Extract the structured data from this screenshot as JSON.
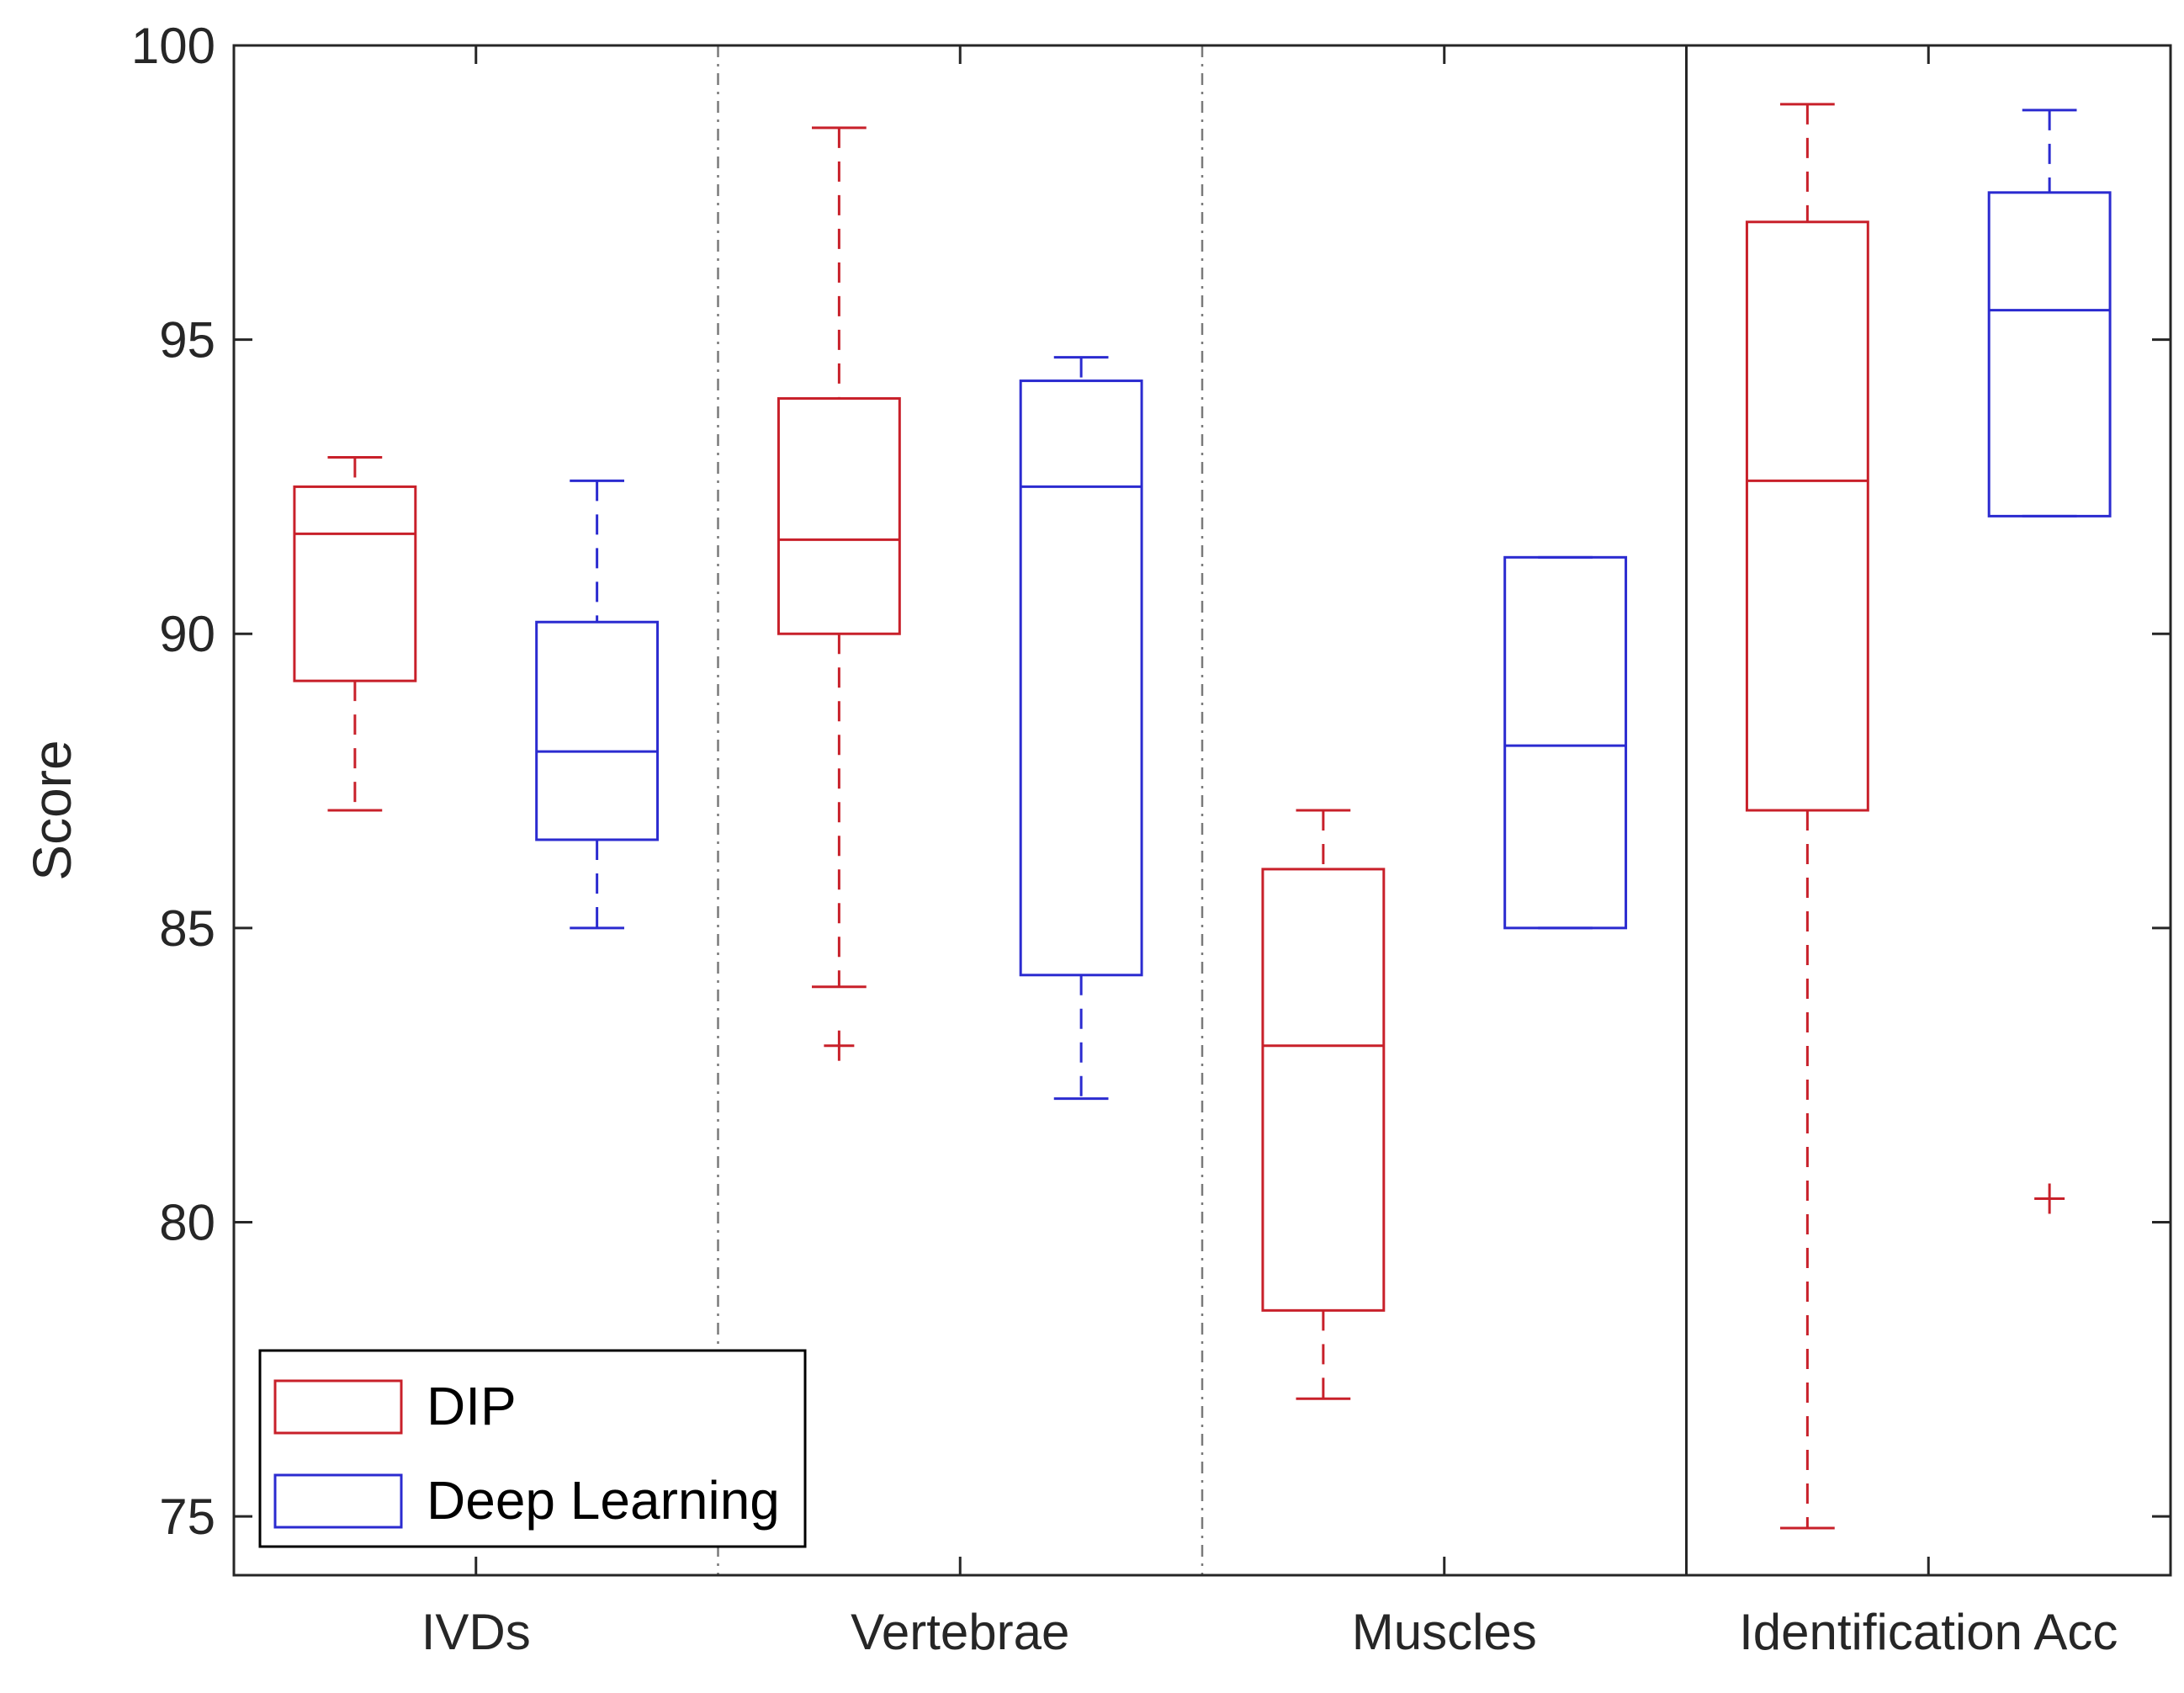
{
  "chart_data": {
    "type": "box",
    "ylabel": "Score",
    "ylim": [
      74,
      100
    ],
    "yticks": [
      75,
      80,
      85,
      90,
      95,
      100
    ],
    "categories": [
      "IVDs",
      "Vertebrae",
      "Muscles",
      "Identification Acc"
    ],
    "series": [
      {
        "name": "DIP",
        "color": "#c8202a",
        "boxes": [
          {
            "category": "IVDs",
            "whisker_low": 87,
            "q1": 89.2,
            "median": 91.7,
            "q3": 92.5,
            "whisker_high": 93,
            "outliers": []
          },
          {
            "category": "Vertebrae",
            "whisker_low": 84,
            "q1": 90,
            "median": 91.6,
            "q3": 94,
            "whisker_high": 98.6,
            "outliers": [
              83
            ]
          },
          {
            "category": "Muscles",
            "whisker_low": 77,
            "q1": 78.5,
            "median": 83,
            "q3": 86,
            "whisker_high": 87,
            "outliers": []
          },
          {
            "category": "Identification Acc",
            "whisker_low": 74.8,
            "q1": 87,
            "median": 92.6,
            "q3": 97,
            "whisker_high": 99,
            "outliers": []
          }
        ]
      },
      {
        "name": "Deep Learning",
        "color": "#2b2bd0",
        "boxes": [
          {
            "category": "IVDs",
            "whisker_low": 85,
            "q1": 86.5,
            "median": 88,
            "q3": 90.2,
            "whisker_high": 92.6,
            "outliers": []
          },
          {
            "category": "Vertebrae",
            "whisker_low": 82.1,
            "q1": 84.2,
            "median": 92.5,
            "q3": 94.3,
            "whisker_high": 94.7,
            "outliers": []
          },
          {
            "category": "Muscles",
            "whisker_low": 85,
            "q1": 85,
            "median": 88.1,
            "q3": 91.3,
            "whisker_high": 91.3,
            "outliers": []
          },
          {
            "category": "Identification Acc",
            "whisker_low": 92,
            "q1": 92,
            "median": 95.5,
            "q3": 97.5,
            "whisker_high": 98.9,
            "outliers": [
              80.4
            ],
            "outlier_color": "#c8202a"
          }
        ]
      }
    ],
    "grid": false,
    "legend": {
      "position": "bottom-left",
      "entries": [
        "DIP",
        "Deep Learning"
      ]
    },
    "separators": [
      "dash-dot",
      "dash-dot",
      "solid"
    ]
  }
}
